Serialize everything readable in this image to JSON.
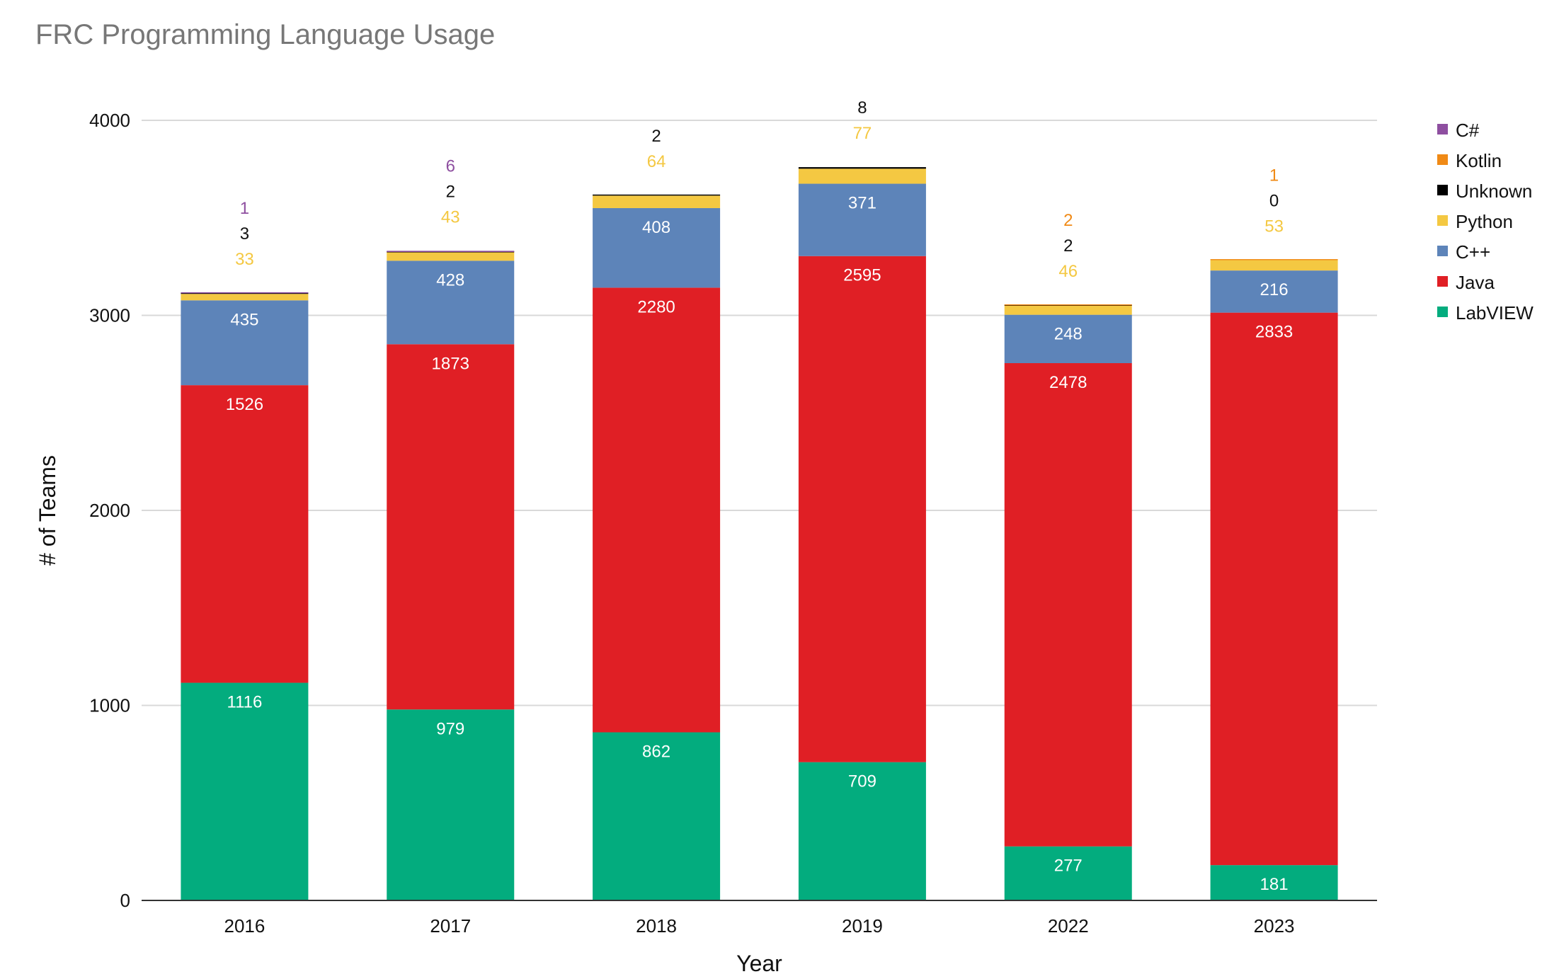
{
  "chart_data": {
    "type": "bar",
    "stacked": true,
    "title": "FRC Programming Language Usage",
    "xlabel": "Year",
    "ylabel": "# of Teams",
    "ylim": [
      0,
      4000
    ],
    "yticks": [
      0,
      1000,
      2000,
      3000,
      4000
    ],
    "grid": true,
    "legend_position": "right",
    "categories": [
      "2016",
      "2017",
      "2018",
      "2019",
      "2022",
      "2023"
    ],
    "series": [
      {
        "name": "LabVIEW",
        "color": "#03ac7e",
        "values": [
          1116,
          979,
          862,
          709,
          277,
          181
        ]
      },
      {
        "name": "Java",
        "color": "#e01f25",
        "values": [
          1526,
          1873,
          2280,
          2595,
          2478,
          2833
        ]
      },
      {
        "name": "C++",
        "color": "#5d84b9",
        "values": [
          435,
          428,
          408,
          371,
          248,
          216
        ]
      },
      {
        "name": "Python",
        "color": "#f4c842",
        "values": [
          33,
          43,
          64,
          77,
          46,
          53
        ]
      },
      {
        "name": "Unknown",
        "color": "#000000",
        "values": [
          3,
          2,
          2,
          8,
          2,
          0
        ]
      },
      {
        "name": "Kotlin",
        "color": "#f08a16",
        "values": [
          null,
          null,
          null,
          null,
          2,
          1
        ]
      },
      {
        "name": "C#",
        "color": "#8e4fa0",
        "values": [
          1,
          6,
          null,
          null,
          null,
          null
        ]
      }
    ],
    "legend_order": [
      "C#",
      "Kotlin",
      "Unknown",
      "Python",
      "C++",
      "Java",
      "LabVIEW"
    ]
  }
}
